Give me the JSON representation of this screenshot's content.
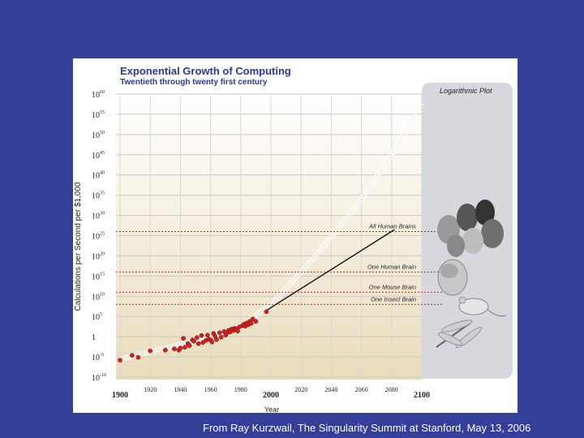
{
  "footer": {
    "credit": "From Ray Kurzwail, The Singularity Summit at Stanford, May 13, 2006"
  },
  "colors": {
    "background": "#333f99",
    "plot_top": "#ffffff",
    "plot_bottom": "#e9dcbc",
    "panel": "#d7d7de",
    "data_point": "#cc2222",
    "threshold": "#cc2222"
  },
  "chart_data": {
    "type": "scatter",
    "title": "Exponential Growth of Computing",
    "subtitle": "Twentieth through twenty first century",
    "xlabel": "Year",
    "ylabel": "Calculations per Second per $1,000",
    "xlim": [
      1900,
      2100
    ],
    "ylim": [
      -10,
      60
    ],
    "y_scale": "log10 exponent",
    "legend": "Logarithmic Plot",
    "x_ticks": [
      {
        "value": 1900,
        "label": "1900",
        "major": true
      },
      {
        "value": 1920,
        "label": "1920",
        "major": false
      },
      {
        "value": 1940,
        "label": "1940",
        "major": false
      },
      {
        "value": 1960,
        "label": "1960",
        "major": false
      },
      {
        "value": 1980,
        "label": "1980",
        "major": false
      },
      {
        "value": 2000,
        "label": "2000",
        "major": true
      },
      {
        "value": 2020,
        "label": "2020",
        "major": false
      },
      {
        "value": 2040,
        "label": "2040",
        "major": false
      },
      {
        "value": 2060,
        "label": "2060",
        "major": false
      },
      {
        "value": 2080,
        "label": "2080",
        "major": false
      },
      {
        "value": 2100,
        "label": "2100",
        "major": true
      }
    ],
    "y_ticks": [
      {
        "exp": 60,
        "base": "10",
        "sup": "60"
      },
      {
        "exp": 55,
        "base": "10",
        "sup": "55"
      },
      {
        "exp": 50,
        "base": "10",
        "sup": "50"
      },
      {
        "exp": 45,
        "base": "10",
        "sup": "45"
      },
      {
        "exp": 40,
        "base": "10",
        "sup": "40"
      },
      {
        "exp": 35,
        "base": "10",
        "sup": "35"
      },
      {
        "exp": 30,
        "base": "10",
        "sup": "30"
      },
      {
        "exp": 25,
        "base": "10",
        "sup": "25"
      },
      {
        "exp": 20,
        "base": "10",
        "sup": "20"
      },
      {
        "exp": 15,
        "base": "10",
        "sup": "15"
      },
      {
        "exp": 10,
        "base": "10",
        "sup": "10"
      },
      {
        "exp": 5,
        "base": "10",
        "sup": "5"
      },
      {
        "exp": 0,
        "base": "1",
        "sup": ""
      },
      {
        "exp": -5,
        "base": "10",
        "sup": "-5"
      },
      {
        "exp": -10,
        "base": "10",
        "sup": "-10"
      }
    ],
    "thresholds": [
      {
        "label": "All Human Brains",
        "exp": 26
      },
      {
        "label": "One Human Brain",
        "exp": 16
      },
      {
        "label": "One Mouse Brain",
        "exp": 11
      },
      {
        "label": "One Insect Brain",
        "exp": 8
      }
    ],
    "trend_line": [
      [
        1997,
        6.5
      ],
      [
        2082,
        26.5
      ]
    ],
    "projection": [
      [
        1900,
        -5.5
      ],
      [
        1950,
        -1
      ],
      [
        1980,
        2.5
      ],
      [
        2000,
        8
      ],
      [
        2020,
        16
      ],
      [
        2040,
        24.5
      ],
      [
        2060,
        34
      ],
      [
        2080,
        45
      ],
      [
        2100,
        58
      ]
    ],
    "points": [
      {
        "x": 1900,
        "y": -5.8
      },
      {
        "x": 1908,
        "y": -4.6
      },
      {
        "x": 1912,
        "y": -5.1
      },
      {
        "x": 1920,
        "y": -3.5
      },
      {
        "x": 1930,
        "y": -3.3
      },
      {
        "x": 1936,
        "y": -3.0
      },
      {
        "x": 1939,
        "y": -3.3
      },
      {
        "x": 1940,
        "y": -2.8
      },
      {
        "x": 1942,
        "y": -0.4
      },
      {
        "x": 1943,
        "y": -2.6
      },
      {
        "x": 1945,
        "y": -1.7
      },
      {
        "x": 1946,
        "y": -2.2
      },
      {
        "x": 1948,
        "y": -0.8
      },
      {
        "x": 1949,
        "y": -1.1
      },
      {
        "x": 1951,
        "y": -0.2
      },
      {
        "x": 1952,
        "y": -1.7
      },
      {
        "x": 1954,
        "y": 0.3
      },
      {
        "x": 1955,
        "y": -1.4
      },
      {
        "x": 1957,
        "y": -0.9
      },
      {
        "x": 1958,
        "y": 0.4
      },
      {
        "x": 1959,
        "y": -0.6
      },
      {
        "x": 1960,
        "y": -0.8
      },
      {
        "x": 1961,
        "y": -1.3
      },
      {
        "x": 1962,
        "y": 0.8
      },
      {
        "x": 1963,
        "y": 0.1
      },
      {
        "x": 1964,
        "y": -0.7
      },
      {
        "x": 1966,
        "y": 1.0
      },
      {
        "x": 1967,
        "y": -0.1
      },
      {
        "x": 1969,
        "y": 1.3
      },
      {
        "x": 1970,
        "y": 0.4
      },
      {
        "x": 1971,
        "y": 1.0
      },
      {
        "x": 1972,
        "y": 1.6
      },
      {
        "x": 1973,
        "y": 1.2
      },
      {
        "x": 1974,
        "y": 1.9
      },
      {
        "x": 1975,
        "y": 1.5
      },
      {
        "x": 1976,
        "y": 2.1
      },
      {
        "x": 1977,
        "y": 1.8
      },
      {
        "x": 1978,
        "y": 1.4
      },
      {
        "x": 1979,
        "y": 2.4
      },
      {
        "x": 1981,
        "y": 2.7
      },
      {
        "x": 1982,
        "y": 3.1
      },
      {
        "x": 1983,
        "y": 2.6
      },
      {
        "x": 1984,
        "y": 3.4
      },
      {
        "x": 1985,
        "y": 3.0
      },
      {
        "x": 1986,
        "y": 3.8
      },
      {
        "x": 1987,
        "y": 3.3
      },
      {
        "x": 1988,
        "y": 4.4
      },
      {
        "x": 1990,
        "y": 3.8
      },
      {
        "x": 1997,
        "y": 6.2
      }
    ],
    "illustrations": [
      "human-heads",
      "human-brain",
      "mouse",
      "dragonfly"
    ]
  }
}
